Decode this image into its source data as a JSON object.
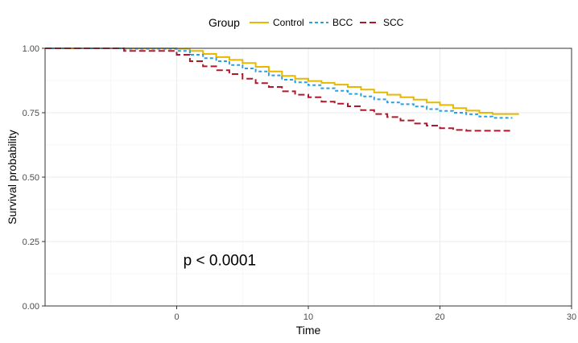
{
  "chart_data": {
    "type": "line",
    "step": true,
    "xlabel": "Time",
    "ylabel": "Survival probability",
    "xlim": [
      -10,
      30
    ],
    "ylim": [
      0,
      1
    ],
    "x_ticks": [
      0,
      10,
      20,
      30
    ],
    "x_tick_labels": [
      "0",
      "10",
      "20",
      "30"
    ],
    "y_ticks": [
      0,
      0.25,
      0.5,
      0.75,
      1
    ],
    "y_tick_labels": [
      "0.00",
      "0.25",
      "0.50",
      "0.75",
      "1.00"
    ],
    "grid": true,
    "legend": {
      "title": "Group",
      "position": "top",
      "entries": [
        "Control",
        "BCC",
        "SCC"
      ]
    },
    "annotation": "p < 0.0001",
    "annotation_pos": [
      0.5,
      0.18
    ],
    "series": [
      {
        "name": "Control",
        "color": "#E7B800",
        "dash": "solid",
        "x": [
          -10,
          -4,
          0,
          1,
          2,
          3,
          4,
          5,
          6,
          7,
          8,
          9,
          10,
          11,
          12,
          13,
          14,
          15,
          16,
          17,
          18,
          19,
          20,
          21,
          22,
          23,
          24,
          25,
          26
        ],
        "y": [
          1.0,
          1.0,
          0.998,
          0.99,
          0.978,
          0.966,
          0.955,
          0.943,
          0.928,
          0.91,
          0.893,
          0.882,
          0.873,
          0.866,
          0.859,
          0.85,
          0.84,
          0.829,
          0.82,
          0.81,
          0.801,
          0.79,
          0.78,
          0.768,
          0.758,
          0.75,
          0.745,
          0.745,
          0.745
        ]
      },
      {
        "name": "BCC",
        "color": "#2E9FDF",
        "dash": "dotted",
        "x": [
          -10,
          -4,
          0,
          1,
          2,
          3,
          4,
          5,
          6,
          7,
          8,
          9,
          10,
          11,
          12,
          13,
          14,
          15,
          16,
          17,
          18,
          19,
          20,
          21,
          22,
          23,
          24,
          25,
          25.5
        ],
        "y": [
          1.0,
          0.998,
          0.99,
          0.975,
          0.962,
          0.95,
          0.935,
          0.922,
          0.91,
          0.895,
          0.878,
          0.868,
          0.857,
          0.845,
          0.835,
          0.823,
          0.813,
          0.802,
          0.79,
          0.783,
          0.774,
          0.764,
          0.757,
          0.75,
          0.744,
          0.735,
          0.73,
          0.73,
          0.73
        ]
      },
      {
        "name": "SCC",
        "color": "#B2182B",
        "dash": "dashed",
        "x": [
          -10,
          -4,
          0,
          1,
          2,
          3,
          4,
          5,
          6,
          7,
          8,
          9,
          10,
          11,
          12,
          13,
          14,
          15,
          16,
          17,
          18,
          19,
          20,
          21,
          22,
          23,
          24,
          25,
          25.5
        ],
        "y": [
          1.0,
          0.99,
          0.975,
          0.95,
          0.93,
          0.915,
          0.9,
          0.882,
          0.865,
          0.85,
          0.833,
          0.82,
          0.81,
          0.793,
          0.785,
          0.775,
          0.76,
          0.745,
          0.733,
          0.72,
          0.708,
          0.7,
          0.69,
          0.683,
          0.68,
          0.68,
          0.68,
          0.68,
          0.68
        ]
      }
    ]
  }
}
